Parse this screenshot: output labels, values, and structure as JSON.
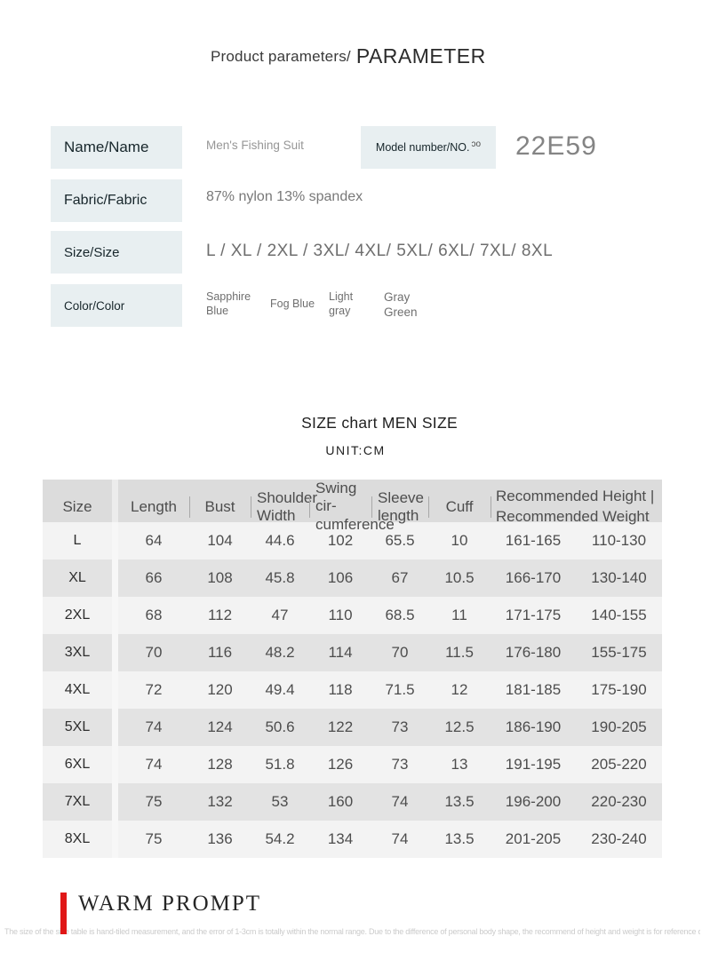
{
  "title": {
    "main": "Product parameters/",
    "sub": "PARAMETER"
  },
  "params": {
    "name": {
      "label": "Name/Name",
      "value": "Men's Fishing Suit"
    },
    "model": {
      "label": "Model number/NO.",
      "artifact": "ɔo",
      "value": "22E59"
    },
    "fabric": {
      "label": "Fabric/Fabric",
      "value": "87% nylon 13% spandex"
    },
    "size": {
      "label": "Size/Size",
      "value": "L /  XL  /  2XL  /  3XL/  4XL/  5XL/  6XL/  7XL/  8XL"
    },
    "color": {
      "label": "Color/Color",
      "values": [
        "Sapphire Blue",
        "Fog Blue",
        "Light gray",
        "Gray Green"
      ]
    }
  },
  "size_chart": {
    "title": "SIZE chart MEN SIZE",
    "unit": "UNIT:CM",
    "header": {
      "size": "Size",
      "length": "Length",
      "bust": "Bust",
      "shoulder": "Shoulder Width",
      "swing": "Swing cir-cumference",
      "sleeve": "Sleeve length",
      "cuff": "Cuff",
      "recommended": "Recommended Height | Recommended Weight"
    },
    "rows": [
      [
        "L",
        "64",
        "104",
        "44.6",
        "102",
        "65.5",
        "10",
        "161-165",
        "110-130"
      ],
      [
        "XL",
        "66",
        "108",
        "45.8",
        "106",
        "67",
        "10.5",
        "166-170",
        "130-140"
      ],
      [
        "2XL",
        "68",
        "112",
        "47",
        "110",
        "68.5",
        "11",
        "171-175",
        "140-155"
      ],
      [
        "3XL",
        "70",
        "116",
        "48.2",
        "114",
        "70",
        "11.5",
        "176-180",
        "155-175"
      ],
      [
        "4XL",
        "72",
        "120",
        "49.4",
        "118",
        "71.5",
        "12",
        "181-185",
        "175-190"
      ],
      [
        "5XL",
        "74",
        "124",
        "50.6",
        "122",
        "73",
        "12.5",
        "186-190",
        "190-205"
      ],
      [
        "6XL",
        "74",
        "128",
        "51.8",
        "126",
        "73",
        "13",
        "191-195",
        "205-220"
      ],
      [
        "7XL",
        "75",
        "132",
        "53",
        "160",
        "74",
        "13.5",
        "196-200",
        "220-230"
      ],
      [
        "8XL",
        "75",
        "136",
        "54.2",
        "134",
        "74",
        "13.5",
        "201-205",
        "230-240"
      ]
    ]
  },
  "footer": {
    "heading": "WARM PROMPT",
    "note": "The size of the size table is hand-tiled measurement, and the error of 1-3cm is totally within the normal range. Due to the difference of personal body shape, the recommend of height and weight is for reference only."
  },
  "theme": {
    "label_box_bg": "#e8eff1",
    "label_text": "#17262b",
    "table_header_bg": "#dcdcdc",
    "row_light_bg": "#f3f3f3",
    "row_dark_bg": "#e3e3e3",
    "accent_red": "#e01717",
    "value_gray": "#8b8b8b"
  }
}
